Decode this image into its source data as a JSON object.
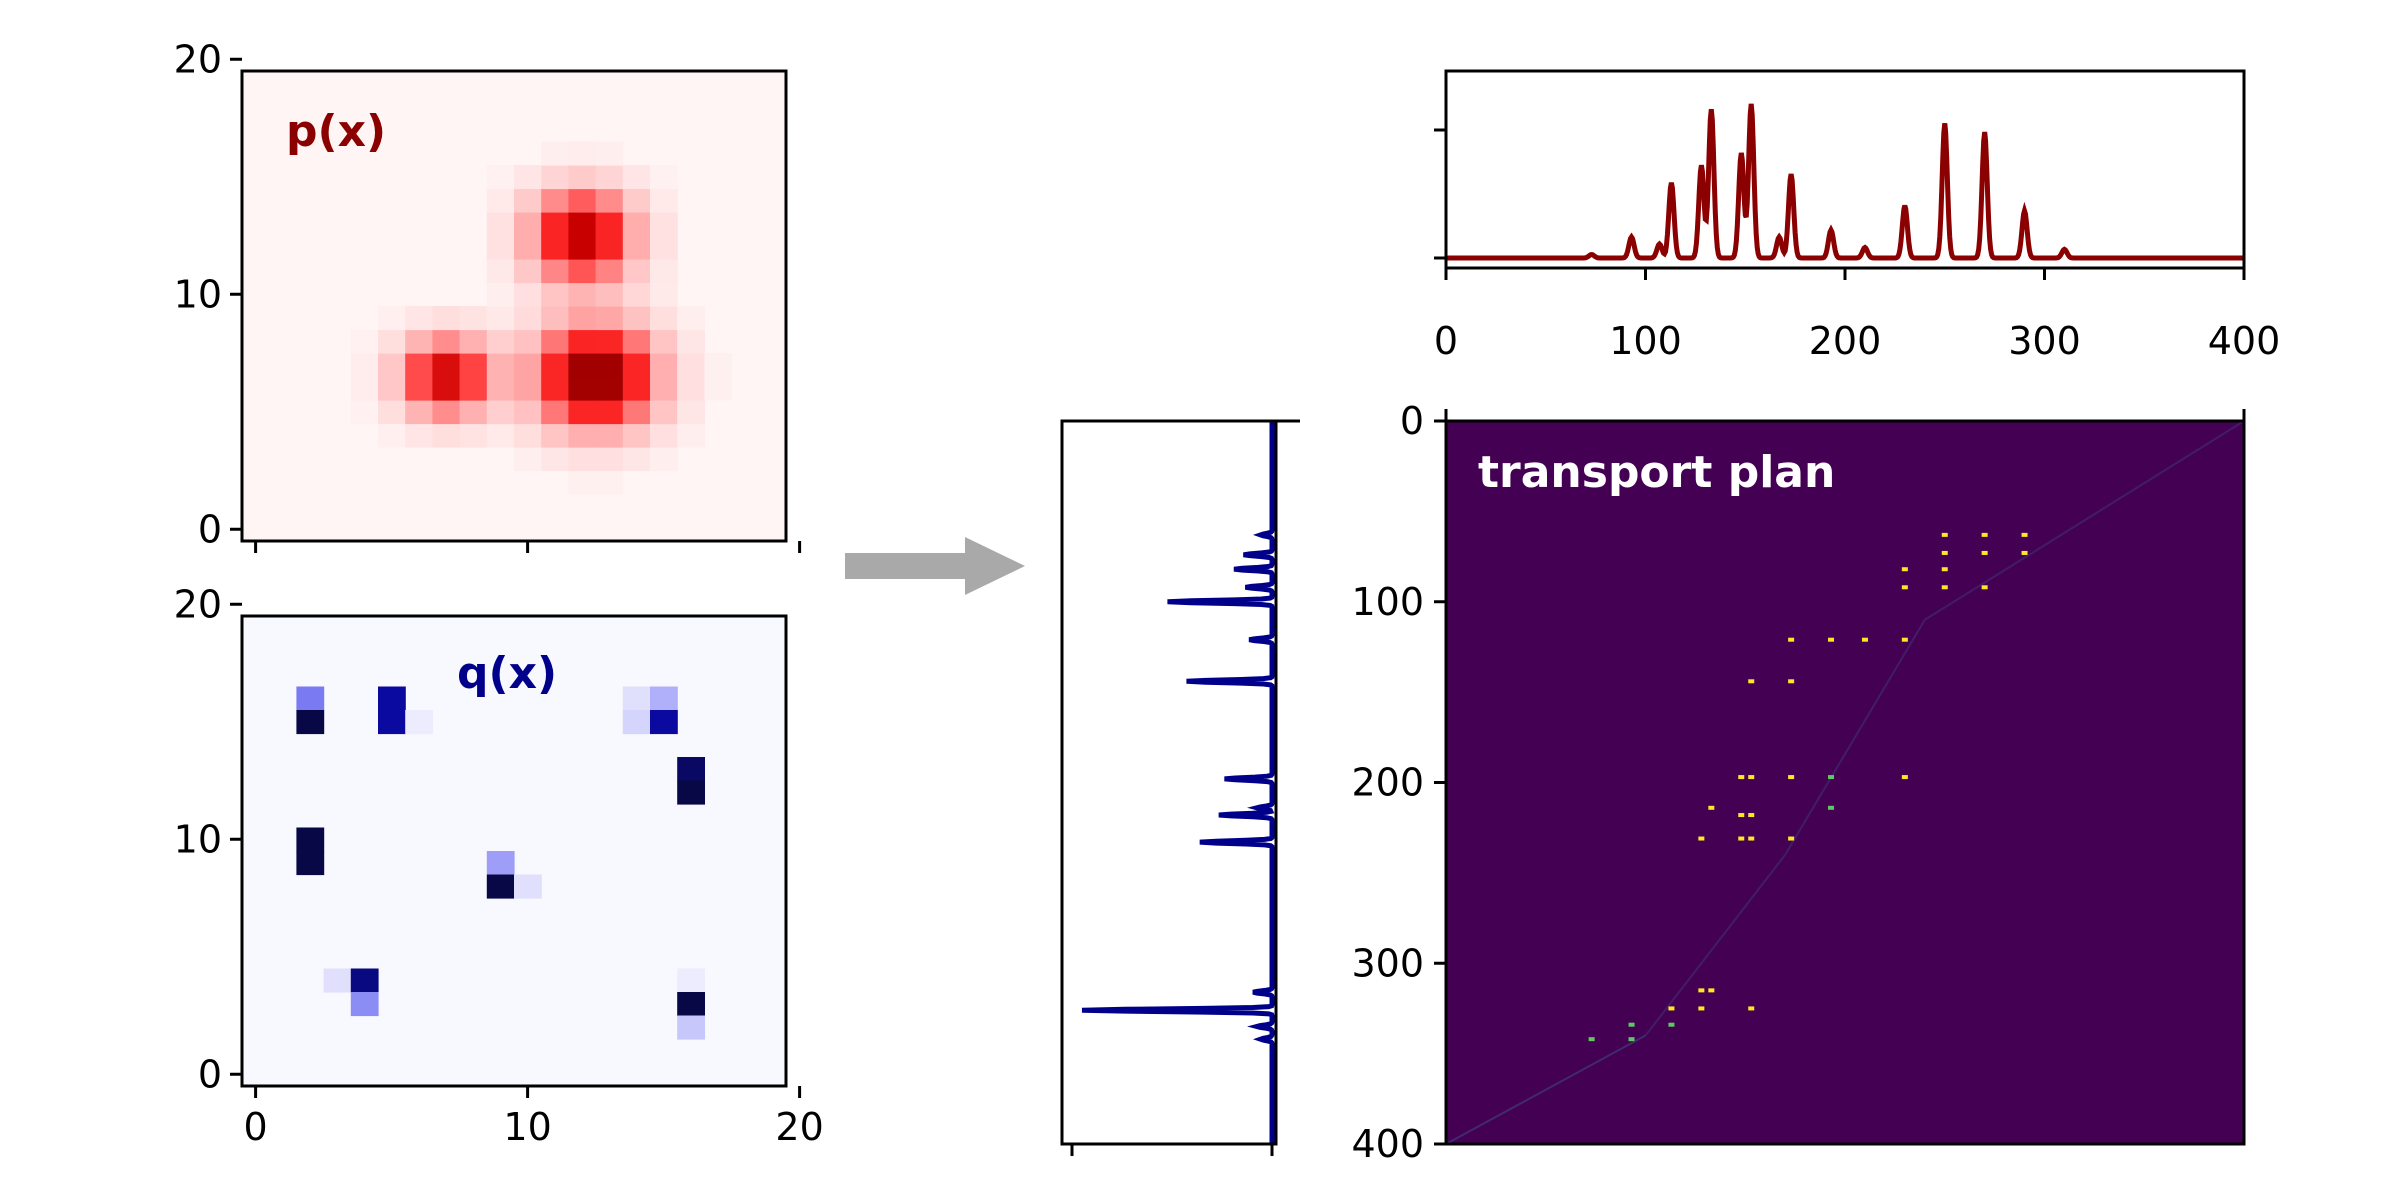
{
  "chart_data": [
    {
      "type": "heatmap",
      "title": "p(x)",
      "title_color": "#8b0000",
      "colormap": "reds",
      "xlim": [
        -0.5,
        19.5
      ],
      "ylim": [
        -0.5,
        19.5
      ],
      "xticks": [
        0,
        10,
        20
      ],
      "xtick_labels_shown": false,
      "yticks": [
        0,
        10,
        20
      ],
      "ytick_labels": [
        "0",
        "10",
        "20"
      ],
      "blobs": [
        {
          "x": 7.0,
          "y": 6.5,
          "sigma": 1.2,
          "peak": 0.8
        },
        {
          "x": 12.0,
          "y": 12.5,
          "sigma": 1.4,
          "peak": 0.85
        },
        {
          "x": 12.5,
          "y": 6.5,
          "sigma": 1.6,
          "peak": 1.0
        }
      ]
    },
    {
      "type": "heatmap",
      "title": "q(x)",
      "title_color": "#00008b",
      "colormap": "blues",
      "xlim": [
        -0.5,
        19.5
      ],
      "ylim": [
        -0.5,
        19.5
      ],
      "xticks": [
        0,
        10,
        20
      ],
      "xtick_labels": [
        "0",
        "10",
        "20"
      ],
      "yticks": [
        0,
        10,
        20
      ],
      "ytick_labels": [
        "0",
        "10",
        "20"
      ],
      "cells": [
        {
          "x": 2,
          "y": 16,
          "v": 0.45
        },
        {
          "x": 2,
          "y": 15,
          "v": 1.0
        },
        {
          "x": 5,
          "y": 16,
          "v": 0.85
        },
        {
          "x": 5,
          "y": 15,
          "v": 0.85
        },
        {
          "x": 6,
          "y": 15,
          "v": 0.05
        },
        {
          "x": 14,
          "y": 16,
          "v": 0.1
        },
        {
          "x": 15,
          "y": 16,
          "v": 0.3
        },
        {
          "x": 14,
          "y": 15,
          "v": 0.15
        },
        {
          "x": 15,
          "y": 15,
          "v": 0.85
        },
        {
          "x": 16,
          "y": 13,
          "v": 0.95
        },
        {
          "x": 16,
          "y": 12,
          "v": 1.0
        },
        {
          "x": 2,
          "y": 10,
          "v": 1.0
        },
        {
          "x": 2,
          "y": 9,
          "v": 1.0
        },
        {
          "x": 9,
          "y": 9,
          "v": 0.35
        },
        {
          "x": 9,
          "y": 8,
          "v": 1.0
        },
        {
          "x": 10,
          "y": 8,
          "v": 0.1
        },
        {
          "x": 3,
          "y": 4,
          "v": 0.1
        },
        {
          "x": 4,
          "y": 4,
          "v": 0.9
        },
        {
          "x": 4,
          "y": 3,
          "v": 0.4
        },
        {
          "x": 16,
          "y": 4,
          "v": 0.05
        },
        {
          "x": 16,
          "y": 3,
          "v": 1.0
        },
        {
          "x": 16,
          "y": 2,
          "v": 0.2
        }
      ]
    },
    {
      "type": "line",
      "title": "",
      "series_color": "#8b0000",
      "xlim": [
        0,
        400
      ],
      "xticks": [
        0,
        100,
        200,
        300,
        400
      ],
      "xtick_labels": [
        "0",
        "100",
        "200",
        "300",
        "400"
      ],
      "peaks": [
        {
          "x": 73,
          "y": 0.02
        },
        {
          "x": 93,
          "y": 0.12
        },
        {
          "x": 107,
          "y": 0.08
        },
        {
          "x": 113,
          "y": 0.43
        },
        {
          "x": 128,
          "y": 0.53
        },
        {
          "x": 133,
          "y": 0.85
        },
        {
          "x": 148,
          "y": 0.6
        },
        {
          "x": 153,
          "y": 0.88
        },
        {
          "x": 167,
          "y": 0.12
        },
        {
          "x": 173,
          "y": 0.48
        },
        {
          "x": 193,
          "y": 0.16
        },
        {
          "x": 210,
          "y": 0.06
        },
        {
          "x": 230,
          "y": 0.3
        },
        {
          "x": 250,
          "y": 0.77
        },
        {
          "x": 270,
          "y": 0.72
        },
        {
          "x": 290,
          "y": 0.27
        },
        {
          "x": 310,
          "y": 0.05
        }
      ]
    },
    {
      "type": "line",
      "orientation": "vertical",
      "series_color": "#00008b",
      "ylim": [
        0,
        400
      ],
      "peaks": [
        {
          "y": 63,
          "v": 0.06
        },
        {
          "y": 74,
          "v": 0.15
        },
        {
          "y": 82,
          "v": 0.2
        },
        {
          "y": 92,
          "v": 0.14
        },
        {
          "y": 100,
          "v": 0.55
        },
        {
          "y": 121,
          "v": 0.12
        },
        {
          "y": 144,
          "v": 0.45
        },
        {
          "y": 198,
          "v": 0.25
        },
        {
          "y": 214,
          "v": 0.08
        },
        {
          "y": 218,
          "v": 0.28
        },
        {
          "y": 233,
          "v": 0.38
        },
        {
          "y": 316,
          "v": 0.1
        },
        {
          "y": 326,
          "v": 1.0
        },
        {
          "y": 335,
          "v": 0.08
        },
        {
          "y": 342,
          "v": 0.06
        }
      ]
    },
    {
      "type": "heatmap",
      "title": "transport plan",
      "title_color": "#ffffff",
      "background": "#440154",
      "xlim": [
        0,
        400
      ],
      "ylim": [
        400,
        0
      ],
      "yticks": [
        0,
        100,
        200,
        300,
        400
      ],
      "ytick_labels": [
        "0",
        "100",
        "200",
        "300",
        "400"
      ],
      "rows": [
        63,
        73,
        82,
        92,
        121,
        144,
        197,
        214,
        218,
        231,
        315,
        325,
        334,
        342
      ],
      "cols": [
        73,
        93,
        113,
        128,
        133,
        148,
        153,
        173,
        193,
        210,
        230,
        250,
        270,
        290,
        310
      ],
      "points": [
        [
          63,
          250
        ],
        [
          63,
          270
        ],
        [
          63,
          290
        ],
        [
          73,
          250
        ],
        [
          73,
          270
        ],
        [
          73,
          290
        ],
        [
          82,
          230
        ],
        [
          82,
          250
        ],
        [
          92,
          230
        ],
        [
          92,
          250
        ],
        [
          92,
          270
        ],
        [
          121,
          173
        ],
        [
          121,
          193
        ],
        [
          121,
          210
        ],
        [
          121,
          230
        ],
        [
          144,
          153
        ],
        [
          144,
          173
        ],
        [
          197,
          148
        ],
        [
          197,
          153
        ],
        [
          197,
          173
        ],
        [
          197,
          193
        ],
        [
          197,
          230
        ],
        [
          214,
          133
        ],
        [
          214,
          193
        ],
        [
          218,
          148
        ],
        [
          218,
          153
        ],
        [
          231,
          128
        ],
        [
          231,
          148
        ],
        [
          231,
          153
        ],
        [
          231,
          173
        ],
        [
          315,
          128
        ],
        [
          315,
          133
        ],
        [
          325,
          113
        ],
        [
          325,
          128
        ],
        [
          325,
          153
        ],
        [
          334,
          93
        ],
        [
          334,
          113
        ],
        [
          342,
          73
        ],
        [
          342,
          93
        ]
      ]
    }
  ]
}
